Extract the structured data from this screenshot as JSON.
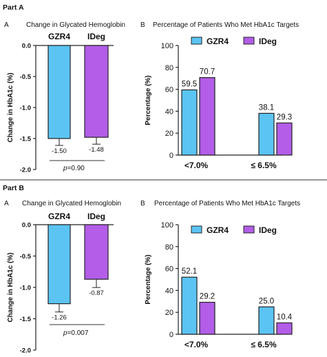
{
  "parts": [
    {
      "title": "Part A",
      "change_panel": {
        "letter": "A",
        "title": "Change in Glycated Hemoglobin",
        "p_value": "=0.90"
      },
      "target_panel": {
        "letter": "B",
        "title": "Percentage of Patients Who Met HbA1c Targets"
      }
    },
    {
      "title": "Part B",
      "change_panel": {
        "letter": "A",
        "title": "Change in Glycated Hemoglobin",
        "p_value": "=0.007"
      },
      "target_panel": {
        "letter": "B",
        "title": "Percentage of Patients Who Met HbA1c Targets"
      }
    }
  ],
  "colors": {
    "GZR4": "#5bc4f3",
    "IDeg": "#b35de8"
  },
  "chart_data": [
    {
      "type": "bar",
      "title": "Change in Glycated Hemoglobin",
      "ylabel": "Change in HbA1c (%)",
      "ylim": [
        -2.0,
        0.0
      ],
      "yticks": [
        "0.0",
        "-0.5",
        "-1.0",
        "-1.5",
        "-2.0"
      ],
      "categories": [
        "GZR4",
        "IDeg"
      ],
      "values": [
        -1.5,
        -1.48
      ],
      "data_labels": [
        "-1.50",
        "-1.48"
      ],
      "error_bars": true,
      "annotation": "p=0.90"
    },
    {
      "type": "bar",
      "title": "Percentage of Patients Who Met HbA1c Targets",
      "ylabel": "Percentage (%)",
      "ylim": [
        0,
        100
      ],
      "yticks": [
        "0",
        "20",
        "40",
        "60",
        "80",
        "100"
      ],
      "categories": [
        "<7.0%",
        "≤ 6.5%"
      ],
      "series": [
        {
          "name": "GZR4",
          "values": [
            59.5,
            38.1
          ],
          "labels": [
            "59.5",
            "38.1"
          ]
        },
        {
          "name": "IDeg",
          "values": [
            70.7,
            29.3
          ],
          "labels": [
            "70.7",
            "29.3"
          ]
        }
      ],
      "legend": "top"
    },
    {
      "type": "bar",
      "title": "Change in Glycated Hemoglobin",
      "ylabel": "Change in HbA1c (%)",
      "ylim": [
        -2.0,
        0.0
      ],
      "yticks": [
        "0.0",
        "-0.5",
        "-1.0",
        "-1.5",
        "-2.0"
      ],
      "categories": [
        "GZR4",
        "IDeg"
      ],
      "values": [
        -1.26,
        -0.87
      ],
      "data_labels": [
        "-1.26",
        "-0.87"
      ],
      "error_bars": true,
      "annotation": "p=0.007"
    },
    {
      "type": "bar",
      "title": "Percentage of Patients Who Met HbA1c Targets",
      "ylabel": "Percentage (%)",
      "ylim": [
        0,
        100
      ],
      "yticks": [
        "0",
        "20",
        "40",
        "60",
        "80",
        "100"
      ],
      "categories": [
        "<7.0%",
        "≤ 6.5%"
      ],
      "series": [
        {
          "name": "GZR4",
          "values": [
            52.1,
            25.0
          ],
          "labels": [
            "52.1",
            "25.0"
          ]
        },
        {
          "name": "IDeg",
          "values": [
            29.2,
            10.4
          ],
          "labels": [
            "29.2",
            "10.4"
          ]
        }
      ],
      "legend": "top"
    }
  ]
}
